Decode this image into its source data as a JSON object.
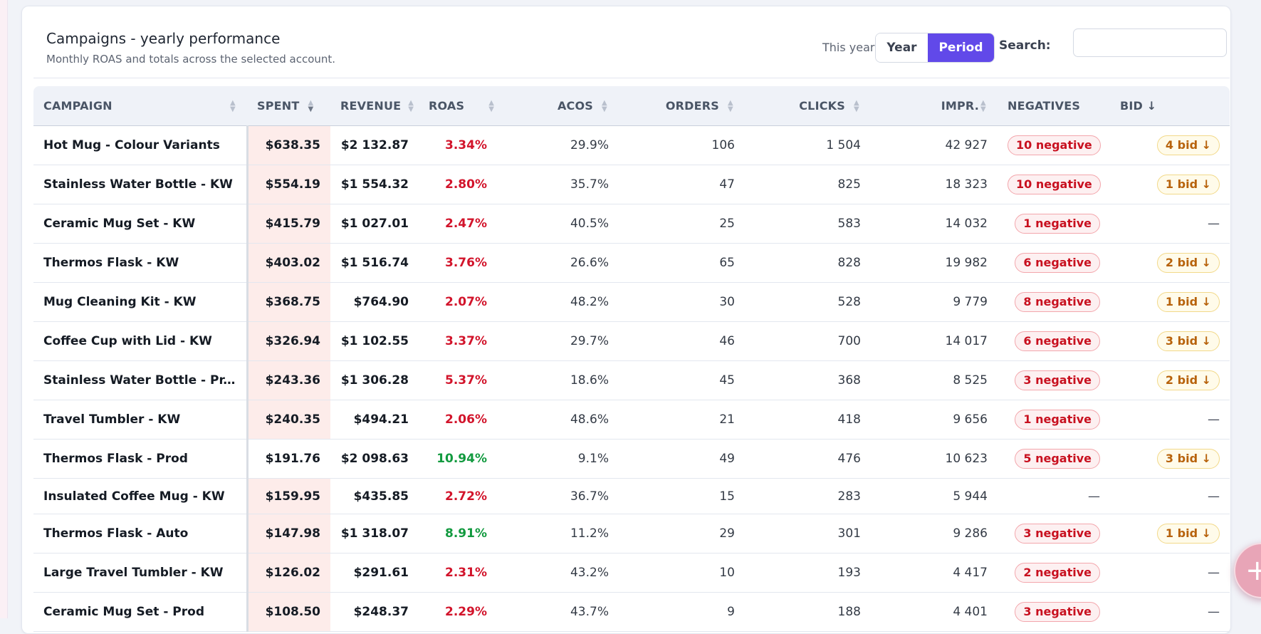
{
  "header": {
    "title": "Campaigns - yearly performance",
    "subtitle": "Monthly ROAS and totals across the selected account.",
    "period_label": "This year",
    "toggle_year": "Year",
    "toggle_period": "Period",
    "search_label": "Search:",
    "search_value": "",
    "search_placeholder": ""
  },
  "columns": {
    "campaign": "CAMPAIGN",
    "spent": "SPENT",
    "revenue": "REVENUE",
    "roas": "ROAS",
    "acos": "ACOS",
    "orders": "ORDERS",
    "clicks": "CLICKS",
    "impr": "IMPR.",
    "negatives": "NEGATIVES",
    "bid": "BID ↓"
  },
  "rows": [
    {
      "campaign": "Hot Mug - Colour Variants",
      "spent": "$638.35",
      "revenue": "$2 132.87",
      "roas": "3.34%",
      "acos": "29.9%",
      "orders": "106",
      "clicks": "1 504",
      "impr": "42 927",
      "negatives": "10 negative",
      "bid": "4 bid ↓"
    },
    {
      "campaign": "Stainless Water Bottle - KW",
      "spent": "$554.19",
      "revenue": "$1 554.32",
      "roas": "2.80%",
      "acos": "35.7%",
      "orders": "47",
      "clicks": "825",
      "impr": "18 323",
      "negatives": "10 negative",
      "bid": "1 bid ↓"
    },
    {
      "campaign": "Ceramic Mug Set - KW",
      "spent": "$415.79",
      "revenue": "$1 027.01",
      "roas": "2.47%",
      "acos": "40.5%",
      "orders": "25",
      "clicks": "583",
      "impr": "14 032",
      "negatives": "1 negative",
      "bid": "—"
    },
    {
      "campaign": "Thermos Flask - KW",
      "spent": "$403.02",
      "revenue": "$1 516.74",
      "roas": "3.76%",
      "acos": "26.6%",
      "orders": "65",
      "clicks": "828",
      "impr": "19 982",
      "negatives": "6 negative",
      "bid": "2 bid ↓"
    },
    {
      "campaign": "Mug Cleaning Kit - KW",
      "spent": "$368.75",
      "revenue": "$764.90",
      "roas": "2.07%",
      "acos": "48.2%",
      "orders": "30",
      "clicks": "528",
      "impr": "9 779",
      "negatives": "8 negative",
      "bid": "1 bid ↓"
    },
    {
      "campaign": "Coffee Cup with Lid - KW",
      "spent": "$326.94",
      "revenue": "$1 102.55",
      "roas": "3.37%",
      "acos": "29.7%",
      "orders": "46",
      "clicks": "700",
      "impr": "14 017",
      "negatives": "6 negative",
      "bid": "3 bid ↓"
    },
    {
      "campaign": "Stainless Water Bottle - Pr...",
      "spent": "$243.36",
      "revenue": "$1 306.28",
      "roas": "5.37%",
      "acos": "18.6%",
      "orders": "45",
      "clicks": "368",
      "impr": "8 525",
      "negatives": "3 negative",
      "bid": "2 bid ↓"
    },
    {
      "campaign": "Travel Tumbler - KW",
      "spent": "$240.35",
      "revenue": "$494.21",
      "roas": "2.06%",
      "acos": "48.6%",
      "orders": "21",
      "clicks": "418",
      "impr": "9 656",
      "negatives": "1 negative",
      "bid": "—"
    },
    {
      "campaign": "Thermos Flask - Prod",
      "spent": "$191.76",
      "revenue": "$2 098.63",
      "roas": "10.94%",
      "acos": "9.1%",
      "orders": "49",
      "clicks": "476",
      "impr": "10 623",
      "negatives": "5 negative",
      "bid": "3 bid ↓"
    },
    {
      "campaign": "Insulated Coffee Mug - KW",
      "spent": "$159.95",
      "revenue": "$435.85",
      "roas": "2.72%",
      "acos": "36.7%",
      "orders": "15",
      "clicks": "283",
      "impr": "5 944",
      "negatives": "—",
      "bid": "—"
    },
    {
      "campaign": "Thermos Flask - Auto",
      "spent": "$147.98",
      "revenue": "$1 318.07",
      "roas": "8.91%",
      "acos": "11.2%",
      "orders": "29",
      "clicks": "301",
      "impr": "9 286",
      "negatives": "3 negative",
      "bid": "1 bid ↓"
    },
    {
      "campaign": "Large Travel Tumbler - KW",
      "spent": "$126.02",
      "revenue": "$291.61",
      "roas": "2.31%",
      "acos": "43.2%",
      "orders": "10",
      "clicks": "193",
      "impr": "4 417",
      "negatives": "2 negative",
      "bid": "—"
    },
    {
      "campaign": "Ceramic Mug Set - Prod",
      "spent": "$108.50",
      "revenue": "$248.37",
      "roas": "2.29%",
      "acos": "43.7%",
      "orders": "9",
      "clicks": "188",
      "impr": "4 401",
      "negatives": "3 negative",
      "bid": "—"
    }
  ],
  "colors": {
    "accent": "#6149e9",
    "roas_bad": "#d2142b",
    "roas_good": "#129a3f",
    "spent_highlight": "#fdecea"
  },
  "icons": {
    "sort": "sort-arrows-icon",
    "fab": "plus-icon"
  }
}
